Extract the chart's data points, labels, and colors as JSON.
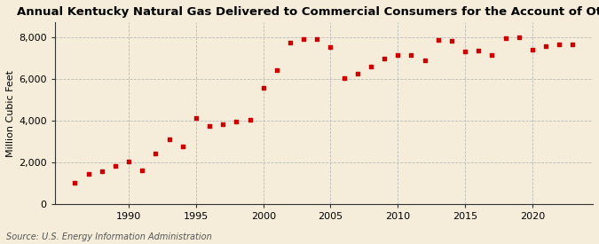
{
  "title": "Annual Kentucky Natural Gas Delivered to Commercial Consumers for the Account of Others",
  "ylabel": "Million Cubic Feet",
  "source": "Source: U.S. Energy Information Administration",
  "background_color": "#f5edda",
  "plot_background_color": "#f5edda",
  "marker_color": "#cc0000",
  "grid_color": "#bbbbbb",
  "years": [
    1986,
    1987,
    1988,
    1989,
    1990,
    1991,
    1992,
    1993,
    1994,
    1995,
    1996,
    1997,
    1998,
    1999,
    2000,
    2001,
    2002,
    2003,
    2004,
    2005,
    2006,
    2007,
    2008,
    2009,
    2010,
    2011,
    2012,
    2013,
    2014,
    2015,
    2016,
    2017,
    2018,
    2019,
    2020,
    2021,
    2022,
    2023
  ],
  "values": [
    1000,
    1450,
    1550,
    1800,
    2050,
    1600,
    2400,
    3100,
    2750,
    4100,
    3750,
    3800,
    3950,
    4050,
    5550,
    6400,
    7750,
    7900,
    7900,
    7500,
    6050,
    6250,
    6600,
    6950,
    7150,
    7150,
    6900,
    7850,
    7800,
    7300,
    7350,
    7150,
    7950,
    8000,
    7400,
    7550,
    7650,
    7650
  ],
  "ylim": [
    0,
    8700
  ],
  "yticks": [
    0,
    2000,
    4000,
    6000,
    8000
  ],
  "ytick_labels": [
    "0",
    "2,000",
    "4,000",
    "6,000",
    "8,000"
  ],
  "xticks": [
    1990,
    1995,
    2000,
    2005,
    2010,
    2015,
    2020
  ],
  "title_fontsize": 9.5,
  "label_fontsize": 8,
  "tick_fontsize": 8,
  "source_fontsize": 7
}
